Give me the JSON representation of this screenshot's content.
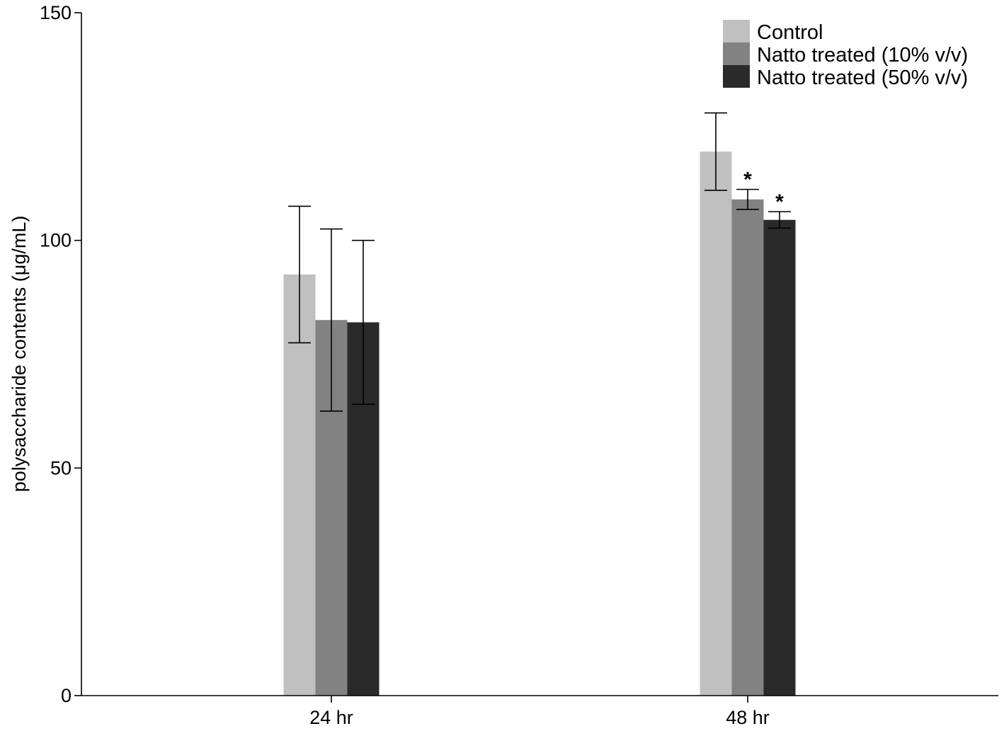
{
  "chart_data": {
    "type": "bar",
    "categories": [
      "24 hr",
      "48 hr"
    ],
    "ylabel": "polysaccharide contents (μg/mL)",
    "xlabel": "",
    "ylim": [
      0,
      150
    ],
    "yticks": [
      0,
      50,
      100,
      150
    ],
    "grid": false,
    "legend_position": "top-right",
    "series": [
      {
        "name": "Control",
        "color": "#c0c0c0",
        "values": [
          92.5,
          119.5
        ],
        "errors": [
          15,
          8.5
        ],
        "significance": [
          "",
          ""
        ]
      },
      {
        "name": "Natto treated (10% v/v)",
        "color": "#828282",
        "values": [
          82.5,
          109
        ],
        "errors": [
          20,
          2.2
        ],
        "significance": [
          "",
          "*"
        ]
      },
      {
        "name": "Natto treated (50% v/v)",
        "color": "#2a2a2a",
        "values": [
          82,
          104.5
        ],
        "errors": [
          18,
          1.8
        ],
        "significance": [
          "",
          "*"
        ]
      }
    ]
  }
}
